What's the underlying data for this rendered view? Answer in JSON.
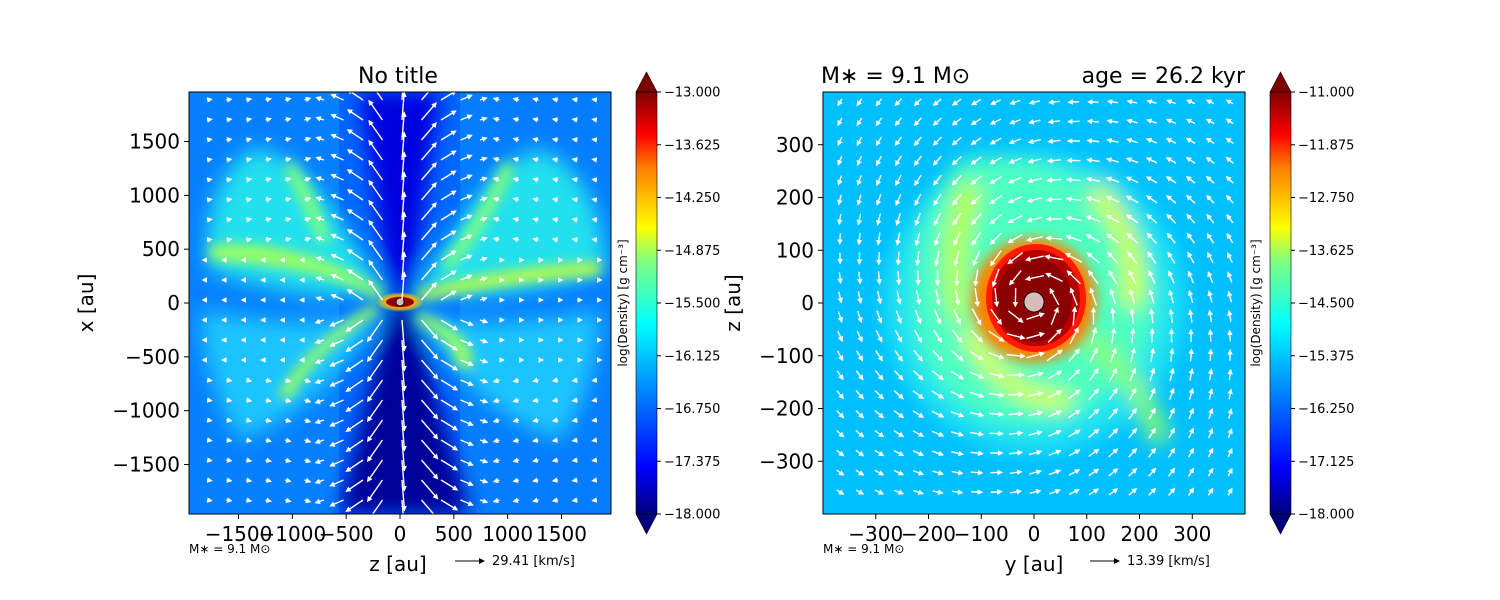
{
  "figure": {
    "left_panel_title": "No title",
    "right_panel_title_mass": "M∗ = 9.1 M⊙",
    "right_panel_title_age": "age = 26.2 kyr"
  },
  "chart_data": [
    {
      "type": "heatmap",
      "title": "No title",
      "xlabel": "z [au]",
      "ylabel": "x [au]",
      "xlim": [
        -1960,
        1960
      ],
      "ylim": [
        -1960,
        1960
      ],
      "xticks": [
        -1500,
        -1000,
        -500,
        0,
        500,
        1000,
        1500
      ],
      "xtick_labels": [
        "−1500",
        "−1000",
        "−500",
        "0",
        "500",
        "1000",
        "1500"
      ],
      "yticks": [
        -1500,
        -1000,
        -500,
        0,
        500,
        1000,
        1500
      ],
      "ytick_labels": [
        "−1500",
        "−1000",
        "−500",
        "0",
        "500",
        "1000",
        "1500"
      ],
      "mass_label": "M∗ = 9.1 M⊙",
      "velocity_key": "29.41 [km/s]",
      "colorbar": {
        "label": "log(Density) [g cm⁻³]",
        "min": -18.0,
        "max": -13.0,
        "ticks": [
          -13.0,
          -13.625,
          -14.25,
          -14.875,
          -15.5,
          -16.125,
          -16.75,
          -17.375,
          -18.0
        ],
        "tick_labels": [
          "−13.000",
          "−13.625",
          "−14.250",
          "−14.875",
          "−15.500",
          "−16.125",
          "−16.750",
          "−17.375",
          "−18.000"
        ],
        "colormap": "jet",
        "extend": "both"
      },
      "grid": false
    },
    {
      "type": "heatmap",
      "title": "M∗ = 9.1 M⊙     age = 26.2 kyr",
      "xlabel": "y [au]",
      "ylabel": "z [au]",
      "xlim": [
        -400,
        400
      ],
      "ylim": [
        -400,
        400
      ],
      "xticks": [
        -300,
        -200,
        -100,
        0,
        100,
        200,
        300
      ],
      "xtick_labels": [
        "−300",
        "−200",
        "−100",
        "0",
        "100",
        "200",
        "300"
      ],
      "yticks": [
        -300,
        -200,
        -100,
        0,
        100,
        200,
        300
      ],
      "ytick_labels": [
        "−300",
        "−200",
        "−100",
        "0",
        "100",
        "200",
        "300"
      ],
      "mass_label": "M∗ = 9.1 M⊙",
      "velocity_key": "13.39 [km/s]",
      "colorbar": {
        "label": "log(Density) [g cm⁻³]",
        "min": -18.0,
        "max": -11.0,
        "ticks": [
          -11.0,
          -11.875,
          -12.75,
          -13.625,
          -14.5,
          -15.375,
          -16.25,
          -17.125,
          -18.0
        ],
        "tick_labels": [
          "−11.000",
          "−11.875",
          "−12.750",
          "−13.625",
          "−14.500",
          "−15.375",
          "−16.250",
          "−17.125",
          "−18.000"
        ],
        "colormap": "jet",
        "extend": "both"
      },
      "grid": false
    }
  ],
  "colors": {
    "jet_stops": [
      "#00007f",
      "#0000ff",
      "#007fff",
      "#00ffff",
      "#7fff7f",
      "#ffff00",
      "#ff7f00",
      "#ff0000",
      "#7f0000"
    ],
    "arrow": "#ffffff",
    "star": "#d9bcbc"
  }
}
